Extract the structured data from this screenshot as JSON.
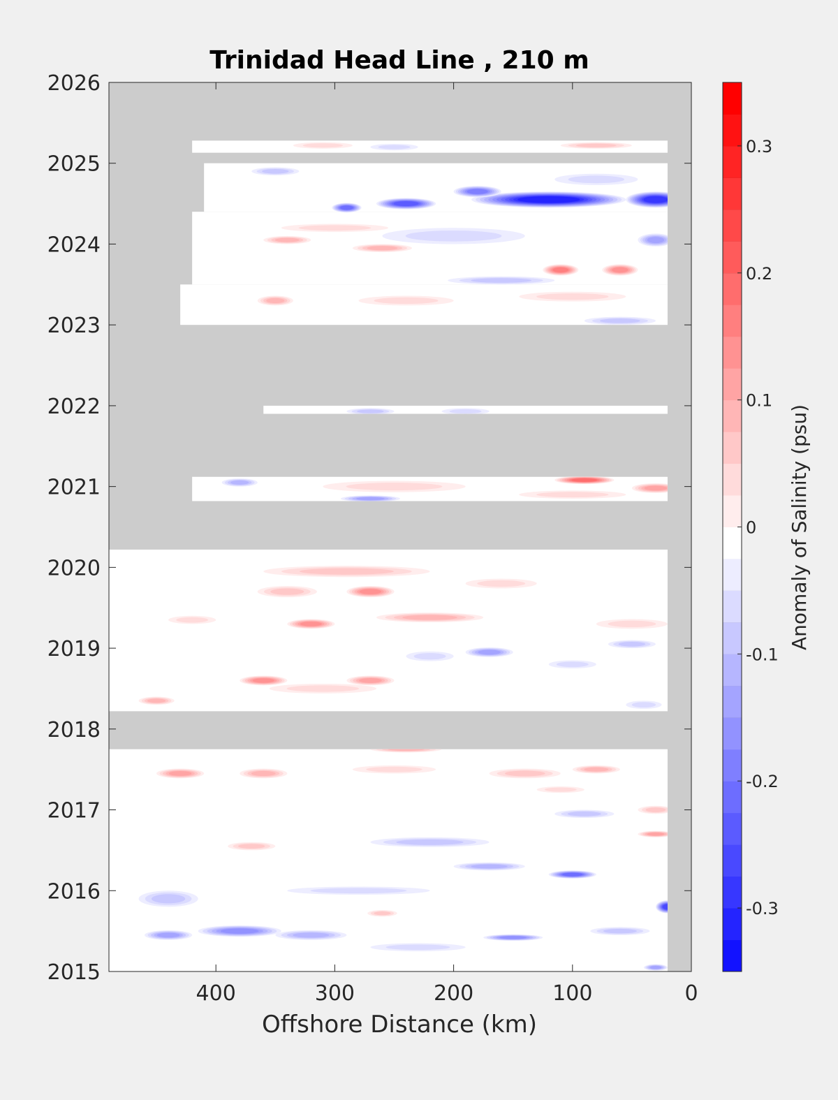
{
  "chart_data": {
    "type": "heatmap",
    "title": "Trinidad Head Line , 210 m",
    "xlabel": "Offshore Distance (km)",
    "ylabel": "",
    "x_direction": "reversed",
    "xlim": [
      490,
      0
    ],
    "ylim": [
      2015,
      2026
    ],
    "xticks": [
      400,
      300,
      200,
      100,
      0
    ],
    "yticks": [
      2015,
      2016,
      2017,
      2018,
      2019,
      2020,
      2021,
      2022,
      2023,
      2024,
      2025,
      2026
    ],
    "colorbar": {
      "label": "Anomaly of Salinity (psu)",
      "range": [
        -0.35,
        0.35
      ],
      "step": 0.025,
      "ticks": [
        0.3,
        0.2,
        0.1,
        0,
        -0.1,
        -0.2,
        -0.3
      ],
      "tick_labels": [
        "0.3",
        "0.2",
        "0.1",
        "0",
        "-0.1",
        "-0.2",
        "-0.3"
      ],
      "colormap": "blue-white-red",
      "position": "right"
    },
    "nodata_color": "#cccccc",
    "no_data_periods": [
      {
        "y0": 2025.28,
        "y1": 2026.0
      },
      {
        "y0": 2023.0,
        "y1": 2022.0
      },
      {
        "y0": 2021.12,
        "y1": 2021.9
      },
      {
        "y0": 2020.22,
        "y1": 2020.82
      },
      {
        "y0": 2017.75,
        "y1": 2018.22
      }
    ],
    "data_extents": [
      {
        "y0": 2015.0,
        "y1": 2017.75,
        "x_offshore": 490,
        "x_nearshore": 20
      },
      {
        "y0": 2018.22,
        "y1": 2020.22,
        "x_offshore": 490,
        "x_nearshore": 20
      },
      {
        "y0": 2020.82,
        "y1": 2021.12,
        "x_offshore": 420,
        "x_nearshore": 20
      },
      {
        "y0": 2021.9,
        "y1": 2022.0,
        "x_offshore": 360,
        "x_nearshore": 20
      },
      {
        "y0": 2023.0,
        "y1": 2023.5,
        "x_offshore": 430,
        "x_nearshore": 20
      },
      {
        "y0": 2023.5,
        "y1": 2024.4,
        "x_offshore": 420,
        "x_nearshore": 20
      },
      {
        "y0": 2024.4,
        "y1": 2025.0,
        "x_offshore": 410,
        "x_nearshore": 20
      },
      {
        "y0": 2025.13,
        "y1": 2025.28,
        "x_offshore": 420,
        "x_nearshore": 20
      }
    ],
    "features": [
      {
        "x": 120,
        "y": 2024.55,
        "sx": 130,
        "sy": 0.1,
        "value": -0.3
      },
      {
        "x": 30,
        "y": 2024.55,
        "sx": 50,
        "sy": 0.1,
        "value": -0.28
      },
      {
        "x": 240,
        "y": 2024.5,
        "sx": 50,
        "sy": 0.07,
        "value": -0.22
      },
      {
        "x": 290,
        "y": 2024.45,
        "sx": 25,
        "sy": 0.06,
        "value": -0.2
      },
      {
        "x": 180,
        "y": 2024.65,
        "sx": 40,
        "sy": 0.07,
        "value": -0.18
      },
      {
        "x": 80,
        "y": 2024.8,
        "sx": 70,
        "sy": 0.07,
        "value": -0.06
      },
      {
        "x": 350,
        "y": 2024.9,
        "sx": 40,
        "sy": 0.05,
        "value": -0.08
      },
      {
        "x": 30,
        "y": 2024.05,
        "sx": 30,
        "sy": 0.08,
        "value": -0.12
      },
      {
        "x": 200,
        "y": 2024.1,
        "sx": 120,
        "sy": 0.1,
        "value": -0.05
      },
      {
        "x": 300,
        "y": 2024.2,
        "sx": 90,
        "sy": 0.05,
        "value": 0.06
      },
      {
        "x": 260,
        "y": 2023.95,
        "sx": 50,
        "sy": 0.05,
        "value": 0.1
      },
      {
        "x": 340,
        "y": 2024.05,
        "sx": 40,
        "sy": 0.05,
        "value": 0.1
      },
      {
        "x": 110,
        "y": 2023.68,
        "sx": 30,
        "sy": 0.07,
        "value": 0.18
      },
      {
        "x": 60,
        "y": 2023.68,
        "sx": 30,
        "sy": 0.07,
        "value": 0.15
      },
      {
        "x": 160,
        "y": 2023.55,
        "sx": 90,
        "sy": 0.05,
        "value": -0.08
      },
      {
        "x": 350,
        "y": 2023.3,
        "sx": 30,
        "sy": 0.06,
        "value": 0.1
      },
      {
        "x": 240,
        "y": 2023.3,
        "sx": 80,
        "sy": 0.06,
        "value": 0.05
      },
      {
        "x": 100,
        "y": 2023.35,
        "sx": 90,
        "sy": 0.06,
        "value": 0.06
      },
      {
        "x": 60,
        "y": 2023.05,
        "sx": 60,
        "sy": 0.05,
        "value": -0.08
      },
      {
        "x": 250,
        "y": 2025.2,
        "sx": 40,
        "sy": 0.04,
        "value": -0.05
      },
      {
        "x": 80,
        "y": 2025.22,
        "sx": 60,
        "sy": 0.04,
        "value": 0.07
      },
      {
        "x": 310,
        "y": 2025.22,
        "sx": 50,
        "sy": 0.04,
        "value": 0.05
      },
      {
        "x": 270,
        "y": 2021.93,
        "sx": 40,
        "sy": 0.04,
        "value": -0.08
      },
      {
        "x": 190,
        "y": 2021.93,
        "sx": 40,
        "sy": 0.04,
        "value": -0.04
      },
      {
        "x": 90,
        "y": 2021.08,
        "sx": 50,
        "sy": 0.05,
        "value": 0.2
      },
      {
        "x": 30,
        "y": 2020.98,
        "sx": 40,
        "sy": 0.06,
        "value": 0.12
      },
      {
        "x": 250,
        "y": 2021.0,
        "sx": 120,
        "sy": 0.07,
        "value": 0.06
      },
      {
        "x": 380,
        "y": 2021.05,
        "sx": 30,
        "sy": 0.05,
        "value": -0.1
      },
      {
        "x": 270,
        "y": 2020.85,
        "sx": 50,
        "sy": 0.04,
        "value": -0.12
      },
      {
        "x": 100,
        "y": 2020.9,
        "sx": 90,
        "sy": 0.05,
        "value": 0.05
      },
      {
        "x": 290,
        "y": 2019.95,
        "sx": 140,
        "sy": 0.07,
        "value": 0.08
      },
      {
        "x": 270,
        "y": 2019.7,
        "sx": 40,
        "sy": 0.07,
        "value": 0.14
      },
      {
        "x": 340,
        "y": 2019.7,
        "sx": 50,
        "sy": 0.07,
        "value": 0.08
      },
      {
        "x": 160,
        "y": 2019.8,
        "sx": 60,
        "sy": 0.06,
        "value": 0.06
      },
      {
        "x": 320,
        "y": 2019.3,
        "sx": 40,
        "sy": 0.06,
        "value": 0.16
      },
      {
        "x": 220,
        "y": 2019.38,
        "sx": 90,
        "sy": 0.06,
        "value": 0.1
      },
      {
        "x": 420,
        "y": 2019.35,
        "sx": 40,
        "sy": 0.05,
        "value": 0.05
      },
      {
        "x": 50,
        "y": 2019.3,
        "sx": 60,
        "sy": 0.06,
        "value": 0.05
      },
      {
        "x": 170,
        "y": 2018.95,
        "sx": 40,
        "sy": 0.06,
        "value": -0.12
      },
      {
        "x": 220,
        "y": 2018.9,
        "sx": 40,
        "sy": 0.06,
        "value": -0.05
      },
      {
        "x": 50,
        "y": 2019.05,
        "sx": 40,
        "sy": 0.05,
        "value": -0.08
      },
      {
        "x": 100,
        "y": 2018.8,
        "sx": 40,
        "sy": 0.05,
        "value": -0.05
      },
      {
        "x": 360,
        "y": 2018.6,
        "sx": 40,
        "sy": 0.06,
        "value": 0.16
      },
      {
        "x": 270,
        "y": 2018.6,
        "sx": 40,
        "sy": 0.06,
        "value": 0.12
      },
      {
        "x": 450,
        "y": 2018.35,
        "sx": 30,
        "sy": 0.05,
        "value": 0.1
      },
      {
        "x": 310,
        "y": 2018.5,
        "sx": 90,
        "sy": 0.06,
        "value": 0.06
      },
      {
        "x": 40,
        "y": 2018.3,
        "sx": 30,
        "sy": 0.05,
        "value": -0.06
      },
      {
        "x": 430,
        "y": 2017.45,
        "sx": 40,
        "sy": 0.06,
        "value": 0.12
      },
      {
        "x": 360,
        "y": 2017.45,
        "sx": 40,
        "sy": 0.06,
        "value": 0.1
      },
      {
        "x": 250,
        "y": 2017.5,
        "sx": 70,
        "sy": 0.05,
        "value": 0.06
      },
      {
        "x": 140,
        "y": 2017.45,
        "sx": 60,
        "sy": 0.06,
        "value": 0.07
      },
      {
        "x": 80,
        "y": 2017.5,
        "sx": 40,
        "sy": 0.05,
        "value": 0.1
      },
      {
        "x": 240,
        "y": 2017.75,
        "sx": 60,
        "sy": 0.04,
        "value": 0.1
      },
      {
        "x": 110,
        "y": 2017.25,
        "sx": 40,
        "sy": 0.04,
        "value": 0.06
      },
      {
        "x": 30,
        "y": 2017.0,
        "sx": 30,
        "sy": 0.05,
        "value": 0.08
      },
      {
        "x": 90,
        "y": 2016.95,
        "sx": 50,
        "sy": 0.05,
        "value": -0.08
      },
      {
        "x": 220,
        "y": 2016.6,
        "sx": 100,
        "sy": 0.06,
        "value": -0.08
      },
      {
        "x": 170,
        "y": 2016.3,
        "sx": 60,
        "sy": 0.05,
        "value": -0.1
      },
      {
        "x": 100,
        "y": 2016.2,
        "sx": 40,
        "sy": 0.05,
        "value": -0.2
      },
      {
        "x": 30,
        "y": 2016.7,
        "sx": 30,
        "sy": 0.04,
        "value": 0.12
      },
      {
        "x": 370,
        "y": 2016.55,
        "sx": 40,
        "sy": 0.05,
        "value": 0.08
      },
      {
        "x": 20,
        "y": 2015.8,
        "sx": 20,
        "sy": 0.08,
        "value": -0.25
      },
      {
        "x": 280,
        "y": 2016.0,
        "sx": 120,
        "sy": 0.05,
        "value": -0.06
      },
      {
        "x": 440,
        "y": 2015.9,
        "sx": 50,
        "sy": 0.1,
        "value": -0.08
      },
      {
        "x": 380,
        "y": 2015.5,
        "sx": 70,
        "sy": 0.07,
        "value": -0.16
      },
      {
        "x": 320,
        "y": 2015.45,
        "sx": 60,
        "sy": 0.06,
        "value": -0.1
      },
      {
        "x": 440,
        "y": 2015.45,
        "sx": 40,
        "sy": 0.06,
        "value": -0.12
      },
      {
        "x": 150,
        "y": 2015.42,
        "sx": 50,
        "sy": 0.04,
        "value": -0.14
      },
      {
        "x": 60,
        "y": 2015.5,
        "sx": 50,
        "sy": 0.05,
        "value": -0.08
      },
      {
        "x": 230,
        "y": 2015.3,
        "sx": 80,
        "sy": 0.05,
        "value": -0.06
      },
      {
        "x": 260,
        "y": 2015.72,
        "sx": 25,
        "sy": 0.04,
        "value": 0.08
      },
      {
        "x": 30,
        "y": 2015.05,
        "sx": 20,
        "sy": 0.04,
        "value": -0.12
      }
    ]
  }
}
